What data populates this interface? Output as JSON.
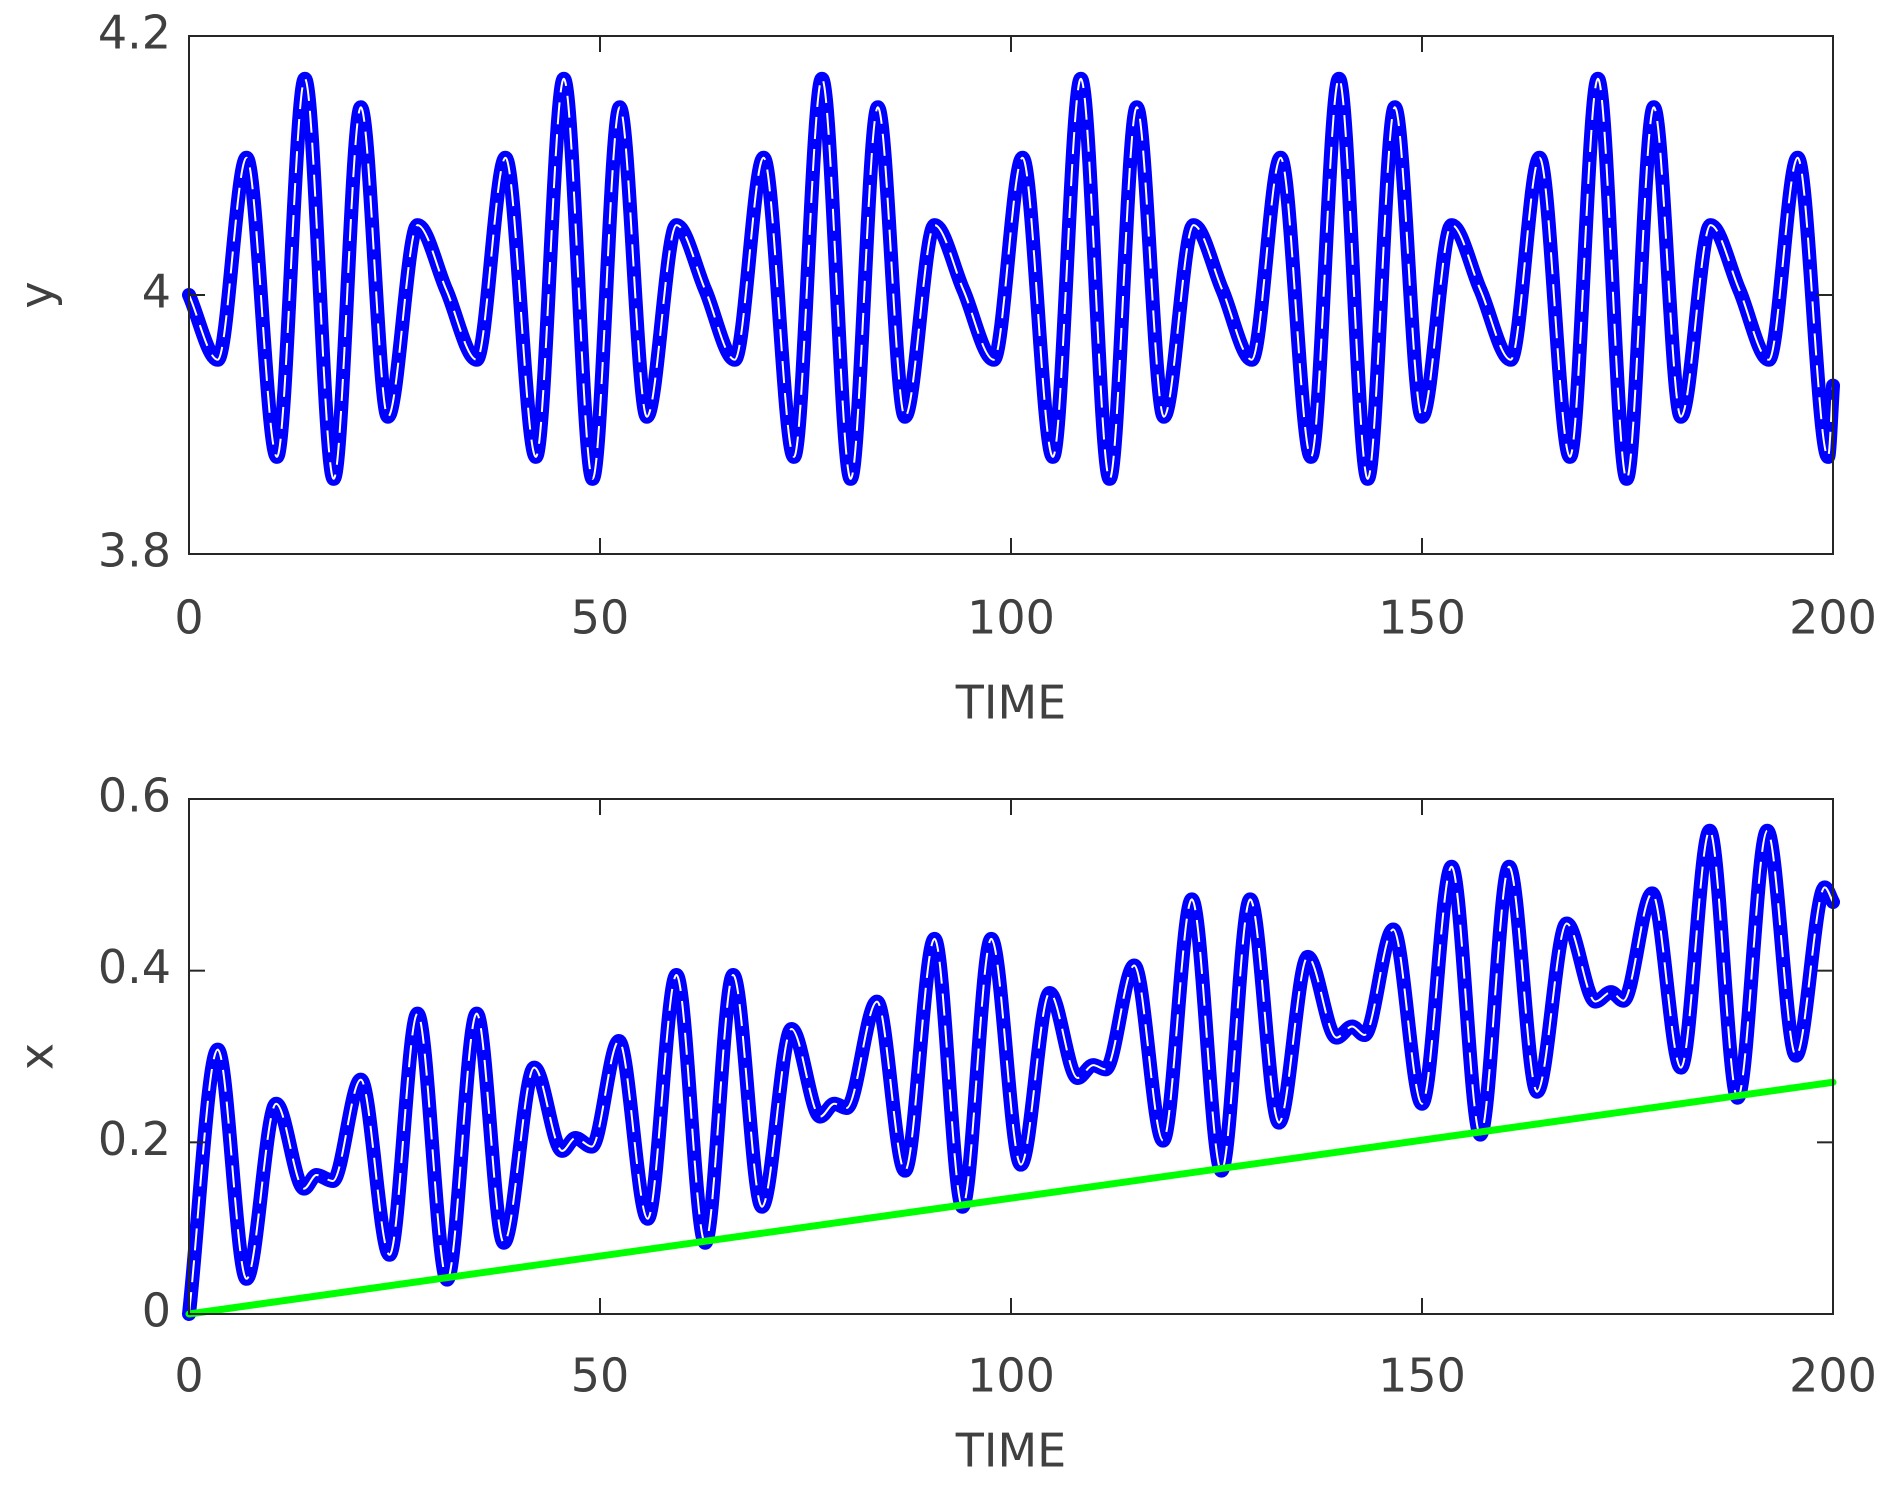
{
  "chart_data": [
    {
      "type": "line",
      "xlabel": "TIME",
      "ylabel": "y",
      "xlim": [
        0,
        200
      ],
      "ylim": [
        3.8,
        4.2
      ],
      "xticks": [
        0,
        50,
        100,
        150,
        200
      ],
      "yticks": [
        3.8,
        4,
        4.2
      ],
      "series": [
        {
          "color": "#0000ff",
          "dash_color": "#ffffff",
          "x": [
            0,
            3.5,
            7,
            10.7,
            14.1,
            17.6,
            20.9,
            24.2,
            27.8,
            31.3,
            35.0,
            38.5,
            42.2,
            45.6,
            49.1,
            52.4,
            55.7,
            59.3,
            62.8,
            66.4,
            69.9,
            73.6,
            77.0,
            80.5,
            83.8,
            87.1,
            90.7,
            94.2,
            97.9,
            101.4,
            105.1,
            108.5,
            112.0,
            115.3,
            118.6,
            122.2,
            125.7,
            129.3,
            132.8,
            136.5,
            139.9,
            143.4,
            146.7,
            150.0,
            153.6,
            157.1,
            160.8,
            164.3,
            168.0,
            171.4,
            174.9,
            178.2,
            181.5,
            185.1,
            188.6,
            192.2,
            195.7,
            199.4,
            200
          ],
          "values": [
            4.0,
            3.95,
            4.106,
            3.875,
            4.167,
            3.858,
            4.145,
            3.906,
            4.054,
            4.004,
            3.95,
            4.106,
            3.875,
            4.167,
            3.858,
            4.145,
            3.906,
            4.054,
            4.004,
            3.95,
            4.106,
            3.875,
            4.167,
            3.858,
            4.145,
            3.906,
            4.054,
            4.004,
            3.95,
            4.106,
            3.875,
            4.167,
            3.858,
            4.145,
            3.906,
            4.054,
            4.004,
            3.95,
            4.106,
            3.875,
            4.167,
            3.858,
            4.145,
            3.906,
            4.054,
            4.004,
            3.95,
            4.106,
            3.875,
            4.167,
            3.858,
            4.145,
            3.906,
            4.054,
            4.004,
            3.95,
            4.106,
            3.875,
            3.93
          ]
        }
      ]
    },
    {
      "type": "line",
      "xlabel": "TIME",
      "ylabel": "x",
      "xlim": [
        0,
        200
      ],
      "ylim": [
        0,
        0.6
      ],
      "xticks": [
        0,
        50,
        100,
        150,
        200
      ],
      "yticks": [
        0,
        0.2,
        0.4,
        0.6
      ],
      "series": [
        {
          "color": "#0000ff",
          "dash_color": "#ffffff",
          "x": [
            0,
            3.5,
            7,
            10.6,
            14,
            15.5,
            17.5,
            20.9,
            24.4,
            27.8,
            31.4,
            35,
            38.3,
            42,
            45.4,
            47,
            49,
            52.3,
            55.8,
            59.3,
            62.8,
            66.2,
            69.7,
            73.3,
            76.8,
            78.5,
            80,
            83.7,
            87.1,
            90.7,
            94.1,
            97.6,
            101.2,
            104.7,
            108.1,
            110,
            111.5,
            115,
            118.5,
            122,
            125.6,
            129.1,
            132.6,
            136.1,
            139.6,
            141.5,
            143,
            146.5,
            150,
            153.6,
            157.1,
            160.6,
            164,
            167.6,
            171.1,
            173,
            174.5,
            178,
            181.5,
            185,
            188.4,
            192,
            195.5,
            199,
            200
          ],
          "values": [
            0,
            0.308,
            0.041,
            0.245,
            0.146,
            0.162,
            0.155,
            0.273,
            0.069,
            0.35,
            0.04,
            0.35,
            0.083,
            0.287,
            0.19,
            0.205,
            0.195,
            0.318,
            0.111,
            0.395,
            0.083,
            0.395,
            0.125,
            0.332,
            0.23,
            0.245,
            0.24,
            0.364,
            0.167,
            0.437,
            0.125,
            0.437,
            0.174,
            0.374,
            0.275,
            0.29,
            0.285,
            0.406,
            0.202,
            0.483,
            0.167,
            0.483,
            0.223,
            0.416,
            0.322,
            0.335,
            0.325,
            0.448,
            0.245,
            0.521,
            0.209,
            0.521,
            0.259,
            0.455,
            0.364,
            0.375,
            0.365,
            0.49,
            0.287,
            0.563,
            0.252,
            0.563,
            0.301,
            0.497,
            0.48
          ]
        },
        {
          "color": "#00ff00",
          "x": [
            0,
            200
          ],
          "values": [
            0,
            0.27
          ]
        }
      ]
    }
  ]
}
